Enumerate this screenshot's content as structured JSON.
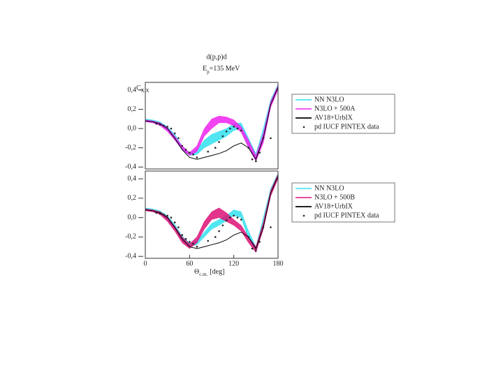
{
  "chart_data": [
    {
      "type": "line",
      "title": "d(p,p)d",
      "energy_label": [
        "E",
        "p",
        "=135 MeV"
      ],
      "ylabel": [
        "C",
        "X X"
      ],
      "xlim": [
        0,
        180
      ],
      "ylim": [
        -0.42,
        0.48
      ],
      "yticks": [
        {
          "value": 0.4,
          "label": "0,4"
        },
        {
          "value": 0.2,
          "label": "0,2"
        },
        {
          "value": 0,
          "label": "0,0"
        },
        {
          "value": -0.2,
          "label": "-0,2"
        },
        {
          "value": -0.4,
          "label": "-0,4"
        }
      ],
      "x": [
        0,
        10,
        20,
        30,
        40,
        50,
        60,
        70,
        80,
        90,
        100,
        110,
        120,
        130,
        140,
        150,
        160,
        170,
        180
      ],
      "series": [
        {
          "name": "NN N3LO",
          "color": "#33e0f0",
          "kind": "band",
          "lower": [
            0.08,
            0.07,
            0.04,
            -0.02,
            -0.12,
            -0.22,
            -0.28,
            -0.27,
            -0.2,
            -0.16,
            -0.12,
            -0.08,
            -0.02,
            0.0,
            -0.2,
            -0.32,
            -0.1,
            0.25,
            0.42
          ],
          "upper": [
            0.1,
            0.09,
            0.07,
            0.02,
            -0.06,
            -0.18,
            -0.25,
            -0.22,
            -0.12,
            -0.06,
            -0.03,
            0.0,
            0.05,
            0.06,
            -0.1,
            -0.26,
            0.0,
            0.3,
            0.46
          ]
        },
        {
          "name": "N3LO + 500A",
          "color": "#ee22ee",
          "kind": "band",
          "lower": [
            0.07,
            0.06,
            0.03,
            -0.03,
            -0.12,
            -0.22,
            -0.28,
            -0.24,
            -0.08,
            0.0,
            0.06,
            0.06,
            0.03,
            -0.04,
            -0.2,
            -0.34,
            -0.15,
            0.22,
            0.4
          ],
          "upper": [
            0.09,
            0.08,
            0.06,
            0.01,
            -0.08,
            -0.18,
            -0.25,
            -0.18,
            0.0,
            0.1,
            0.13,
            0.12,
            0.09,
            0.02,
            -0.12,
            -0.28,
            -0.05,
            0.28,
            0.45
          ]
        },
        {
          "name": "AV18+UrbIX",
          "color": "#000000",
          "kind": "line",
          "values": [
            0.08,
            0.07,
            0.05,
            0.0,
            -0.1,
            -0.22,
            -0.3,
            -0.32,
            -0.3,
            -0.28,
            -0.26,
            -0.23,
            -0.18,
            -0.15,
            -0.2,
            -0.32,
            -0.1,
            0.25,
            0.43
          ]
        },
        {
          "name": "pd IUCF PINTEX data",
          "color": "#222222",
          "kind": "points",
          "x": [
            15,
            20,
            25,
            30,
            35,
            40,
            45,
            50,
            55,
            60,
            65,
            70,
            85,
            95,
            100,
            105,
            110,
            115,
            120,
            125,
            130,
            140,
            145,
            150,
            155,
            160,
            170
          ],
          "values": [
            0.05,
            0.04,
            0.03,
            0.02,
            0.0,
            -0.05,
            -0.1,
            -0.18,
            -0.22,
            -0.25,
            -0.27,
            -0.3,
            -0.24,
            -0.2,
            -0.14,
            -0.08,
            -0.03,
            0.0,
            0.02,
            0.0,
            -0.02,
            -0.2,
            -0.32,
            -0.34,
            -0.25,
            -0.1,
            -0.1
          ]
        }
      ]
    },
    {
      "type": "line",
      "xlabel": [
        "Θ",
        "c.m.",
        "[deg]"
      ],
      "xlim": [
        0,
        180
      ],
      "ylim": [
        -0.42,
        0.48
      ],
      "xticks": [
        0,
        60,
        120,
        180
      ],
      "yticks": [
        {
          "value": 0.4,
          "label": "0,4"
        },
        {
          "value": 0.2,
          "label": "0,2"
        },
        {
          "value": 0,
          "label": "0,0"
        },
        {
          "value": -0.2,
          "label": "-0,2"
        },
        {
          "value": -0.4,
          "label": "-0,4"
        }
      ],
      "x": [
        0,
        10,
        20,
        30,
        40,
        50,
        60,
        70,
        80,
        90,
        100,
        110,
        120,
        130,
        140,
        150,
        160,
        170,
        180
      ],
      "series": [
        {
          "name": "NN N3LO",
          "color": "#33e0f0",
          "kind": "band",
          "lower": [
            0.08,
            0.07,
            0.04,
            -0.02,
            -0.12,
            -0.24,
            -0.3,
            -0.28,
            -0.2,
            -0.12,
            -0.08,
            -0.03,
            0.02,
            0.0,
            -0.22,
            -0.35,
            -0.1,
            0.25,
            0.42
          ],
          "upper": [
            0.1,
            0.09,
            0.07,
            0.02,
            -0.07,
            -0.19,
            -0.26,
            -0.24,
            -0.15,
            -0.06,
            -0.02,
            0.02,
            0.08,
            0.06,
            -0.14,
            -0.3,
            0.0,
            0.3,
            0.46
          ]
        },
        {
          "name": "N3LO + 500B",
          "color": "#dd1177",
          "kind": "band",
          "lower": [
            0.07,
            0.06,
            0.03,
            -0.04,
            -0.14,
            -0.26,
            -0.32,
            -0.26,
            -0.12,
            -0.02,
            0.0,
            -0.04,
            -0.08,
            -0.14,
            -0.26,
            -0.36,
            -0.12,
            0.22,
            0.4
          ],
          "upper": [
            0.09,
            0.08,
            0.06,
            0.01,
            -0.09,
            -0.2,
            -0.27,
            -0.2,
            -0.04,
            0.06,
            0.1,
            0.05,
            -0.02,
            -0.08,
            -0.2,
            -0.3,
            -0.05,
            0.28,
            0.45
          ]
        },
        {
          "name": "AV18+UrbIX",
          "color": "#000000",
          "kind": "line",
          "values": [
            0.08,
            0.07,
            0.05,
            0.0,
            -0.1,
            -0.22,
            -0.3,
            -0.32,
            -0.3,
            -0.28,
            -0.26,
            -0.23,
            -0.18,
            -0.15,
            -0.2,
            -0.32,
            -0.1,
            0.25,
            0.43
          ]
        },
        {
          "name": "pd IUCF PINTEX data",
          "color": "#222222",
          "kind": "points",
          "x": [
            15,
            20,
            25,
            30,
            35,
            40,
            45,
            50,
            55,
            60,
            65,
            70,
            85,
            95,
            100,
            105,
            110,
            115,
            120,
            125,
            130,
            140,
            145,
            150,
            155,
            160,
            170
          ],
          "values": [
            0.05,
            0.04,
            0.03,
            0.02,
            0.0,
            -0.05,
            -0.1,
            -0.18,
            -0.22,
            -0.25,
            -0.27,
            -0.3,
            -0.24,
            -0.2,
            -0.14,
            -0.08,
            -0.03,
            0.0,
            0.02,
            0.0,
            -0.02,
            -0.2,
            -0.32,
            -0.34,
            -0.25,
            -0.1,
            -0.1
          ]
        }
      ]
    }
  ]
}
